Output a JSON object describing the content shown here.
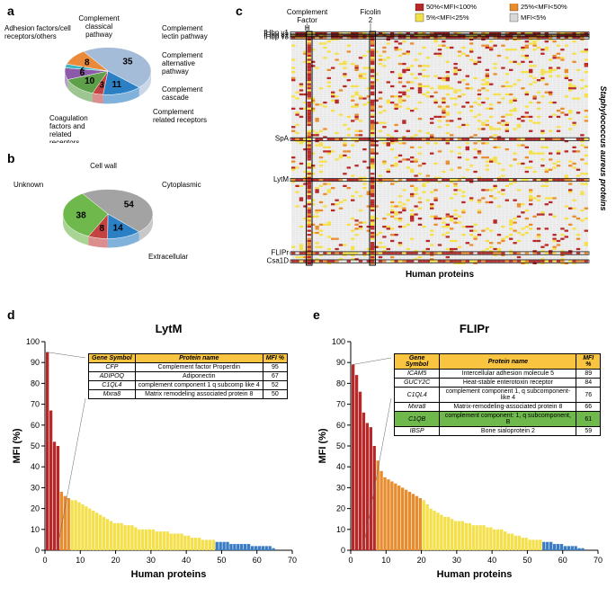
{
  "panel_a": {
    "label": "a",
    "slices": [
      {
        "label": "Adhesion factors/cell receptors/others",
        "value": 35,
        "color": "#a5bcd9"
      },
      {
        "label": "Complement classical pathway",
        "value": 11,
        "color": "#2b7fc4"
      },
      {
        "label": "Complement lectin pathway",
        "value": 3,
        "color": "#c54242"
      },
      {
        "label": "Complement alternative pathway",
        "value": 10,
        "color": "#5ea04a"
      },
      {
        "label": "Complement cascade",
        "value": 6,
        "color": "#8b5aa8"
      },
      {
        "label": "Complement related receptors",
        "value": 2,
        "color": "#3db5c4"
      },
      {
        "label": "Coagulation factors and related receptors",
        "value": 8,
        "color": "#ea8a3a"
      }
    ]
  },
  "panel_b": {
    "label": "b",
    "slices": [
      {
        "label": "Unknown",
        "value": 54,
        "color": "#a3a3a3"
      },
      {
        "label": "Cell wall",
        "value": 14,
        "color": "#2b7fc4"
      },
      {
        "label": "Cytoplasmic",
        "value": 8,
        "color": "#c54242"
      },
      {
        "label": "Extracellular",
        "value": 38,
        "color": "#6fb84c"
      }
    ]
  },
  "panel_c": {
    "label": "c",
    "xlabel": "Human proteins",
    "ylabel": "Staphylococcus aureus proteins",
    "col_labels": [
      "Complement Factor H",
      "Ficolin 2"
    ],
    "row_labels": [
      "fHbp v1",
      "fHbp v2",
      "fHbp v3",
      "SpA",
      "LytM",
      "FLIPr",
      "Csa1D"
    ],
    "legend": [
      {
        "label": "50%<MFI<100%",
        "color": "#b82828"
      },
      {
        "label": "25%<MFI<50%",
        "color": "#e88c2e"
      },
      {
        "label": "5%<MFI<25%",
        "color": "#f4e04a"
      },
      {
        "label": "MFI<5%",
        "color": "#d8d8d8"
      }
    ],
    "grid_cols": 75,
    "grid_rows": 114
  },
  "panel_d": {
    "label": "d",
    "title": "LytM",
    "xlabel": "Human proteins",
    "ylabel": "MFI (%)",
    "ylim": [
      0,
      100
    ],
    "ytick_step": 10,
    "xmax": 70,
    "table_headers": [
      "Gene Symbol",
      "Protein name",
      "MFI %"
    ],
    "table_rows": [
      [
        "CFP",
        "Complement factor Properdin",
        "95"
      ],
      [
        "ADIPOQ",
        "Adiponectin",
        "67"
      ],
      [
        "C1QL4",
        "complement component 1 q subcomp like 4",
        "52"
      ],
      [
        "Mxra8",
        "Matrix remodeling associated protein 8",
        "50"
      ]
    ],
    "bars": [
      95,
      67,
      52,
      50,
      28,
      26,
      25,
      24,
      24,
      23,
      22,
      21,
      20,
      19,
      18,
      17,
      16,
      15,
      14,
      13,
      13,
      13,
      12,
      12,
      12,
      11,
      10,
      10,
      10,
      10,
      10,
      9,
      9,
      9,
      9,
      8,
      8,
      8,
      8,
      7,
      7,
      6,
      6,
      6,
      5,
      5,
      5,
      5,
      4,
      4,
      4,
      4,
      3,
      3,
      3,
      3,
      3,
      3,
      2,
      2,
      2,
      2,
      2,
      2,
      1
    ]
  },
  "panel_e": {
    "label": "e",
    "title": "FLIPr",
    "xlabel": "Human proteins",
    "ylabel": "MFI (%)",
    "ylim": [
      0,
      100
    ],
    "ytick_step": 10,
    "xmax": 70,
    "table_headers": [
      "Gene Symbol",
      "Protein name",
      "MFI %"
    ],
    "table_rows": [
      [
        "ICAM5",
        "Intercellular adhesion molecule 5",
        "89"
      ],
      [
        "GUCY2C",
        "Heat-stable enterotoxin receptor",
        "84"
      ],
      [
        "C1QL4",
        "complement component 1, q subcomponent-like 4",
        "76"
      ],
      [
        "Mxra8",
        "Matrix-remodeling-associated protein 8",
        "66"
      ],
      [
        "C1QB",
        "complement component: 1, q subcomponent, B",
        "61"
      ],
      [
        "IBSP",
        "Bone sialoprotein 2",
        "59"
      ]
    ],
    "highlight_row": 4,
    "bars": [
      89,
      84,
      76,
      66,
      61,
      59,
      50,
      43,
      38,
      35,
      34,
      33,
      32,
      31,
      30,
      29,
      28,
      27,
      26,
      25,
      24,
      22,
      20,
      19,
      18,
      17,
      16,
      16,
      15,
      14,
      14,
      14,
      13,
      13,
      12,
      12,
      12,
      12,
      11,
      11,
      10,
      10,
      10,
      9,
      8,
      8,
      7,
      7,
      6,
      6,
      5,
      5,
      5,
      5,
      4,
      4,
      4,
      3,
      3,
      3,
      2,
      2,
      2,
      2,
      1,
      1
    ]
  },
  "colors": {
    "red": "#b82828",
    "orange": "#e88c2e",
    "yellow": "#f4e04a",
    "gray": "#d8d8d8",
    "blue": "#3a7cc4"
  }
}
